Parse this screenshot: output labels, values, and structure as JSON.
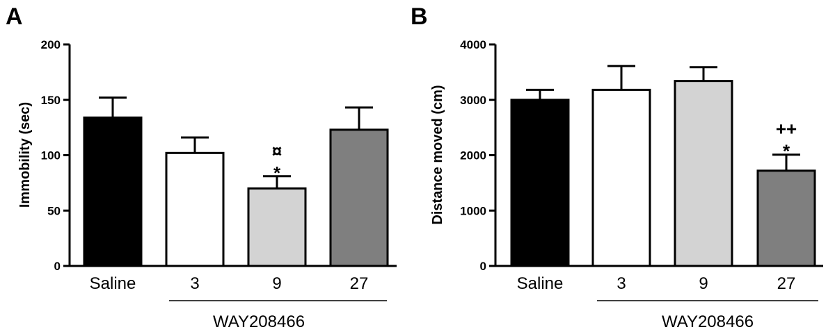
{
  "chart_data": [
    {
      "type": "bar",
      "panel": "A",
      "categories": [
        "Saline",
        "3",
        "9",
        "27"
      ],
      "values": [
        134,
        102,
        70,
        123
      ],
      "errors": [
        18,
        14,
        11,
        20
      ],
      "colors": [
        "#000000",
        "#ffffff",
        "#d3d3d3",
        "#7f7f7f"
      ],
      "ylabel": "Immobility (sec)",
      "ylim": [
        0,
        200
      ],
      "yticks": [
        "0",
        "50",
        "100",
        "150",
        "200"
      ],
      "group_label": "WAY208466",
      "annotations": [
        {
          "category": "9",
          "lines": [
            "¤",
            "*"
          ]
        }
      ],
      "grid": false
    },
    {
      "type": "bar",
      "panel": "B",
      "categories": [
        "Saline",
        "3",
        "9",
        "27"
      ],
      "values": [
        3000,
        3180,
        3340,
        1720
      ],
      "errors": [
        180,
        430,
        250,
        290
      ],
      "colors": [
        "#000000",
        "#ffffff",
        "#d3d3d3",
        "#7f7f7f"
      ],
      "ylabel": "Distance moved (cm)",
      "ylim": [
        0,
        4000
      ],
      "yticks": [
        "0",
        "1000",
        "2000",
        "3000",
        "4000"
      ],
      "group_label": "WAY208466",
      "annotations": [
        {
          "category": "27",
          "lines": [
            "++",
            "*"
          ]
        }
      ],
      "grid": false
    }
  ]
}
